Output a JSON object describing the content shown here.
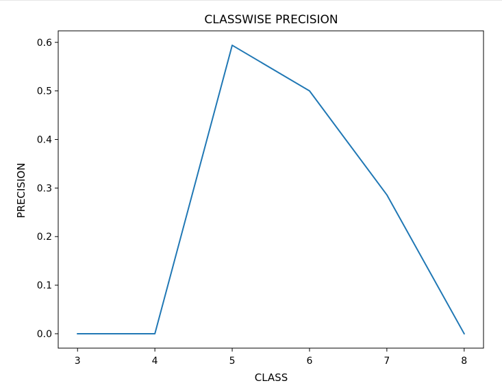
{
  "chart_data": {
    "type": "line",
    "title": "CLASSWISE PRECISION",
    "xlabel": "CLASS",
    "ylabel": "PRECISION",
    "x": [
      3,
      4,
      5,
      6,
      7,
      8
    ],
    "series": [
      {
        "values": [
          0.0,
          0.0,
          0.594,
          0.5,
          0.286,
          0.0
        ],
        "color": "#1f77b4"
      }
    ],
    "xticks": [
      "3",
      "4",
      "5",
      "6",
      "7",
      "8"
    ],
    "yticks": [
      "0.0",
      "0.1",
      "0.2",
      "0.3",
      "0.4",
      "0.5",
      "0.6"
    ],
    "xlim": [
      2.75,
      8.25
    ],
    "ylim": [
      -0.0297,
      0.6237
    ],
    "grid": false,
    "legend": "none"
  }
}
